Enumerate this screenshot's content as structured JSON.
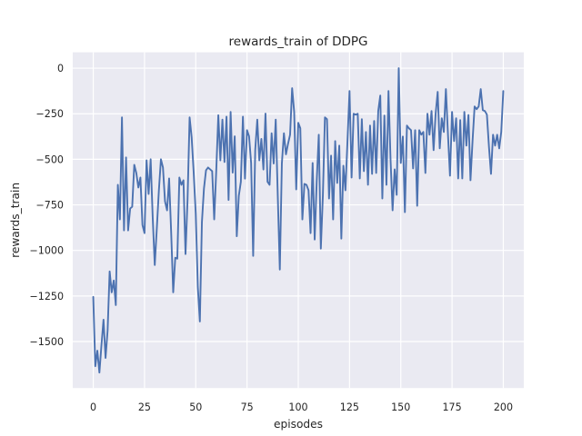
{
  "title": "rewards_train of DDPG",
  "chart_data": {
    "type": "line",
    "title": "rewards_train of DDPG",
    "xlabel": "episodes",
    "ylabel": "rewards_train",
    "legend": null,
    "grid": true,
    "plot_bg_color": "#eaeaf2",
    "grid_color": "#ffffff",
    "line_color": "#4c72b0",
    "text_color": "#262626",
    "xlim": [
      -10,
      210
    ],
    "ylim": [
      -1755,
      87
    ],
    "x_ticks": [
      0,
      25,
      50,
      75,
      100,
      125,
      150,
      175,
      200
    ],
    "y_ticks": [
      0,
      -250,
      -500,
      -750,
      -1000,
      -1250,
      -1500
    ],
    "x_start": 0,
    "x_step": 1,
    "values": [
      -1255,
      -1635,
      -1550,
      -1670,
      -1520,
      -1380,
      -1590,
      -1440,
      -1115,
      -1230,
      -1165,
      -1300,
      -640,
      -830,
      -270,
      -890,
      -490,
      -890,
      -770,
      -760,
      -530,
      -575,
      -655,
      -600,
      -860,
      -905,
      -505,
      -690,
      -500,
      -820,
      -1080,
      -880,
      -673,
      -500,
      -545,
      -730,
      -780,
      -605,
      -900,
      -1230,
      -1040,
      -1045,
      -600,
      -640,
      -615,
      -1020,
      -720,
      -270,
      -380,
      -575,
      -800,
      -1200,
      -1390,
      -845,
      -660,
      -560,
      -545,
      -555,
      -565,
      -830,
      -560,
      -258,
      -506,
      -282,
      -515,
      -266,
      -723,
      -240,
      -573,
      -374,
      -922,
      -700,
      -623,
      -266,
      -606,
      -340,
      -374,
      -520,
      -1030,
      -450,
      -282,
      -506,
      -388,
      -556,
      -249,
      -623,
      -640,
      -357,
      -523,
      -282,
      -700,
      -1105,
      -523,
      -357,
      -473,
      -415,
      -365,
      -110,
      -240,
      -665,
      -300,
      -330,
      -830,
      -635,
      -640,
      -670,
      -905,
      -520,
      -940,
      -620,
      -365,
      -990,
      -700,
      -270,
      -280,
      -715,
      -480,
      -830,
      -400,
      -630,
      -425,
      -935,
      -535,
      -670,
      -400,
      -125,
      -600,
      -250,
      -255,
      -250,
      -605,
      -280,
      -565,
      -350,
      -640,
      -315,
      -580,
      -290,
      -575,
      -235,
      -150,
      -715,
      -260,
      -640,
      -125,
      -500,
      -780,
      -555,
      -695,
      0,
      -520,
      -375,
      -790,
      -315,
      -330,
      -340,
      -550,
      -340,
      -755,
      -340,
      -365,
      -350,
      -575,
      -250,
      -365,
      -235,
      -450,
      -250,
      -130,
      -440,
      -275,
      -350,
      -115,
      -360,
      -590,
      -240,
      -400,
      -275,
      -605,
      -285,
      -605,
      -240,
      -425,
      -257,
      -615,
      -400,
      -210,
      -225,
      -210,
      -115,
      -230,
      -235,
      -255,
      -430,
      -580,
      -365,
      -425,
      -365,
      -440,
      -350,
      -125
    ]
  },
  "geometry_note": "axes area 80,57.6 to 576,427.2 in a 640x480 canvas"
}
